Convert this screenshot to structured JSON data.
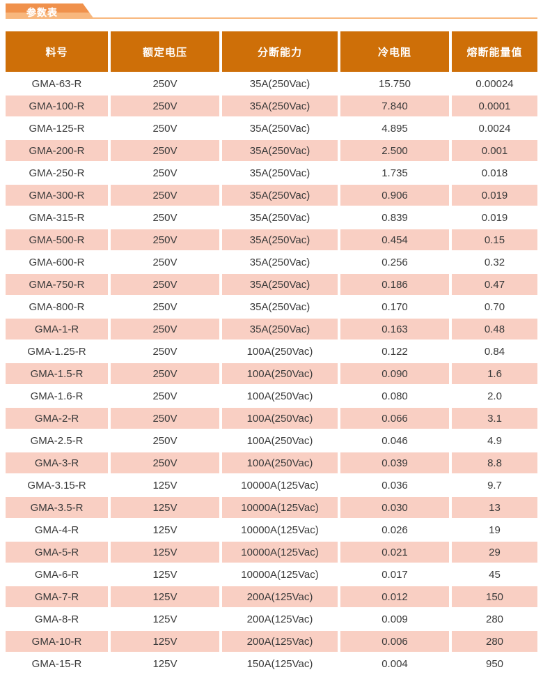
{
  "tab": {
    "label": "参数表"
  },
  "table": {
    "columns": [
      "料号",
      "额定电压",
      "分断能力",
      "冷电阻",
      "熔断能量值"
    ],
    "rows": [
      [
        "GMA-63-R",
        "250V",
        "35A(250Vac)",
        "15.750",
        "0.00024"
      ],
      [
        "GMA-100-R",
        "250V",
        "35A(250Vac)",
        "7.840",
        "0.0001"
      ],
      [
        "GMA-125-R",
        "250V",
        "35A(250Vac)",
        "4.895",
        "0.0024"
      ],
      [
        "GMA-200-R",
        "250V",
        "35A(250Vac)",
        "2.500",
        "0.001"
      ],
      [
        "GMA-250-R",
        "250V",
        "35A(250Vac)",
        "1.735",
        "0.018"
      ],
      [
        "GMA-300-R",
        "250V",
        "35A(250Vac)",
        "0.906",
        "0.019"
      ],
      [
        "GMA-315-R",
        "250V",
        "35A(250Vac)",
        "0.839",
        "0.019"
      ],
      [
        "GMA-500-R",
        "250V",
        "35A(250Vac)",
        "0.454",
        "0.15"
      ],
      [
        "GMA-600-R",
        "250V",
        "35A(250Vac)",
        "0.256",
        "0.32"
      ],
      [
        "GMA-750-R",
        "250V",
        "35A(250Vac)",
        "0.186",
        "0.47"
      ],
      [
        "GMA-800-R",
        "250V",
        "35A(250Vac)",
        "0.170",
        "0.70"
      ],
      [
        "GMA-1-R",
        "250V",
        "35A(250Vac)",
        "0.163",
        "0.48"
      ],
      [
        "GMA-1.25-R",
        "250V",
        "100A(250Vac)",
        "0.122",
        "0.84"
      ],
      [
        "GMA-1.5-R",
        "250V",
        "100A(250Vac)",
        "0.090",
        "1.6"
      ],
      [
        "GMA-1.6-R",
        "250V",
        "100A(250Vac)",
        "0.080",
        "2.0"
      ],
      [
        "GMA-2-R",
        "250V",
        "100A(250Vac)",
        "0.066",
        "3.1"
      ],
      [
        "GMA-2.5-R",
        "250V",
        "100A(250Vac)",
        "0.046",
        "4.9"
      ],
      [
        "GMA-3-R",
        "250V",
        "100A(250Vac)",
        "0.039",
        "8.8"
      ],
      [
        "GMA-3.15-R",
        "125V",
        "10000A(125Vac)",
        "0.036",
        "9.7"
      ],
      [
        "GMA-3.5-R",
        "125V",
        "10000A(125Vac)",
        "0.030",
        "13"
      ],
      [
        "GMA-4-R",
        "125V",
        "10000A(125Vac)",
        "0.026",
        "19"
      ],
      [
        "GMA-5-R",
        "125V",
        "10000A(125Vac)",
        "0.021",
        "29"
      ],
      [
        "GMA-6-R",
        "125V",
        "10000A(125Vac)",
        "0.017",
        "45"
      ],
      [
        "GMA-7-R",
        "125V",
        "200A(125Vac)",
        "0.012",
        "150"
      ],
      [
        "GMA-8-R",
        "125V",
        "200A(125Vac)",
        "0.009",
        "280"
      ],
      [
        "GMA-10-R",
        "125V",
        "200A(125Vac)",
        "0.006",
        "280"
      ],
      [
        "GMA-15-R",
        "125V",
        "150A(125Vac)",
        "0.004",
        "950"
      ]
    ]
  },
  "colors": {
    "tab_dark": "#F0914B",
    "tab_light": "#F8B77D",
    "header_bg": "#CE6F08",
    "row_alt_bg": "#F9CFC3",
    "text": "#3A3A3A"
  }
}
